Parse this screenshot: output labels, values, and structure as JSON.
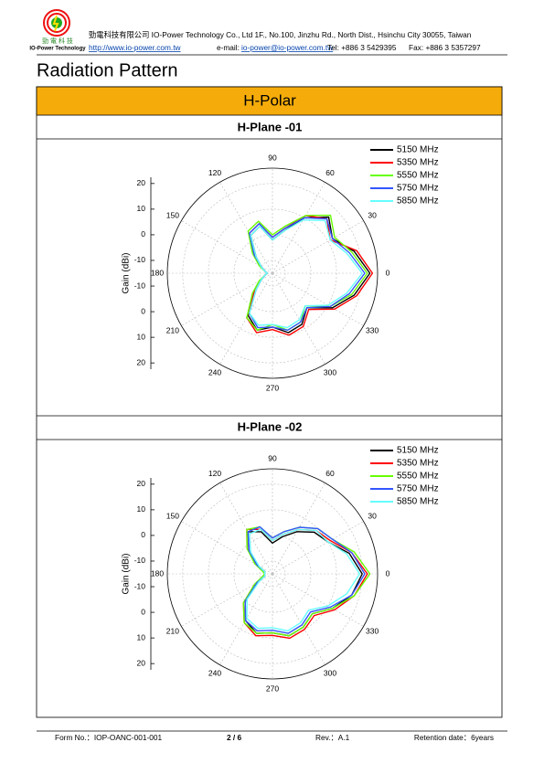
{
  "header": {
    "logo_cn": "勁 電 科 技",
    "logo_en": "IO-Power Technology",
    "company": "勁電科技有限公司 IO-Power Technology Co., Ltd 1F., No.100, Jinzhu Rd., North Dist., Hsinchu City 30055, Taiwan",
    "url": "http://www.io-power.com.tw",
    "email_label": "e-mail:",
    "email": "io-power@io-power.com.tw",
    "tel": "Tel: +886 3 5429395",
    "fax": "Fax: +886 3 5357297"
  },
  "title": "Radiation Pattern",
  "section": "H-Polar",
  "charts": [
    {
      "type": "polar",
      "title": "H-Plane -01",
      "ylabel": "Gain (dBi)",
      "rlim": [
        -15,
        26
      ],
      "rticks": [
        -10,
        0,
        10,
        20
      ],
      "angle_ticks": [
        0,
        30,
        60,
        90,
        120,
        150,
        180,
        210,
        240,
        270,
        300,
        330
      ],
      "angles": [
        0,
        15,
        30,
        45,
        60,
        75,
        90,
        105,
        120,
        135,
        150,
        165,
        180,
        195,
        210,
        225,
        240,
        255,
        270,
        285,
        300,
        315,
        330,
        345
      ],
      "series": [
        {
          "name": "5150 MHz",
          "color": "#000000",
          "values": [
            23,
            18,
            12,
            16,
            10,
            2,
            -2,
            4,
            2,
            -6,
            -10,
            -12,
            -13,
            -12,
            -10,
            -6,
            4,
            8,
            6,
            9,
            8,
            4,
            12,
            18
          ]
        },
        {
          "name": "5350 MHz",
          "color": "#ff0000",
          "values": [
            24,
            19,
            11,
            15,
            11,
            3,
            -1,
            5,
            3,
            -5,
            -10,
            -12,
            -13,
            -12,
            -10,
            -5,
            5,
            9,
            7,
            10,
            9,
            5,
            13,
            19
          ]
        },
        {
          "name": "5550 MHz",
          "color": "#66ff00",
          "values": [
            22,
            17,
            13,
            17,
            11,
            4,
            0,
            6,
            4,
            -4,
            -9,
            -12,
            -13,
            -12,
            -9,
            -4,
            5,
            8,
            5,
            8,
            7,
            3,
            11,
            17
          ]
        },
        {
          "name": "5750 MHz",
          "color": "#3355ff",
          "values": [
            21,
            16,
            12,
            15,
            10,
            3,
            -1,
            5,
            3,
            -5,
            -10,
            -12,
            -13,
            -12,
            -10,
            -6,
            3,
            7,
            6,
            8,
            7,
            4,
            11,
            16
          ]
        },
        {
          "name": "5850 MHz",
          "color": "#66ffff",
          "values": [
            20,
            15,
            11,
            14,
            9,
            2,
            -2,
            4,
            2,
            -6,
            -10,
            -12,
            -13,
            -12,
            -10,
            -6,
            3,
            6,
            5,
            7,
            6,
            3,
            10,
            15
          ]
        }
      ]
    },
    {
      "type": "polar",
      "title": "H-Plane -02",
      "ylabel": "Gain (dBi)",
      "rlim": [
        -15,
        26
      ],
      "rticks": [
        -10,
        0,
        10,
        20
      ],
      "angle_ticks": [
        0,
        30,
        60,
        90,
        120,
        150,
        180,
        210,
        240,
        270,
        300,
        330
      ],
      "angles": [
        0,
        15,
        30,
        45,
        60,
        75,
        90,
        105,
        120,
        135,
        150,
        165,
        180,
        195,
        210,
        225,
        240,
        255,
        270,
        285,
        300,
        315,
        330,
        345
      ],
      "series": [
        {
          "name": "5150 MHz",
          "color": "#000000",
          "values": [
            20,
            16,
            10,
            8,
            4,
            0,
            -3,
            2,
            4,
            -2,
            -8,
            -12,
            -12,
            -12,
            -8,
            0,
            6,
            9,
            8,
            10,
            9,
            7,
            12,
            17
          ]
        },
        {
          "name": "5350 MHz",
          "color": "#ff0000",
          "values": [
            22,
            17,
            11,
            9,
            5,
            1,
            -2,
            3,
            5,
            -1,
            -8,
            -12,
            -12,
            -12,
            -7,
            1,
            7,
            10,
            9,
            11,
            10,
            8,
            13,
            18
          ]
        },
        {
          "name": "5550 MHz",
          "color": "#66ff00",
          "values": [
            23,
            18,
            12,
            10,
            6,
            2,
            -1,
            4,
            5,
            -1,
            -7,
            -11,
            -12,
            -11,
            -7,
            1,
            7,
            9,
            8,
            10,
            9,
            7,
            12,
            18
          ]
        },
        {
          "name": "5750 MHz",
          "color": "#3355ff",
          "values": [
            21,
            17,
            12,
            10,
            6,
            2,
            -1,
            4,
            4,
            -2,
            -8,
            -12,
            -12,
            -12,
            -8,
            0,
            6,
            8,
            7,
            9,
            8,
            6,
            11,
            17
          ]
        },
        {
          "name": "5850 MHz",
          "color": "#66ffff",
          "values": [
            19,
            15,
            10,
            9,
            5,
            1,
            -2,
            3,
            3,
            -3,
            -9,
            -12,
            -12,
            -12,
            -9,
            -1,
            5,
            7,
            6,
            8,
            7,
            5,
            10,
            15
          ]
        }
      ]
    }
  ],
  "footer": {
    "form": "Form No.：IOP-OANC-001-001",
    "page": "2 / 6",
    "rev": "Rev.：A.1",
    "retention": "Retention date：6years"
  }
}
